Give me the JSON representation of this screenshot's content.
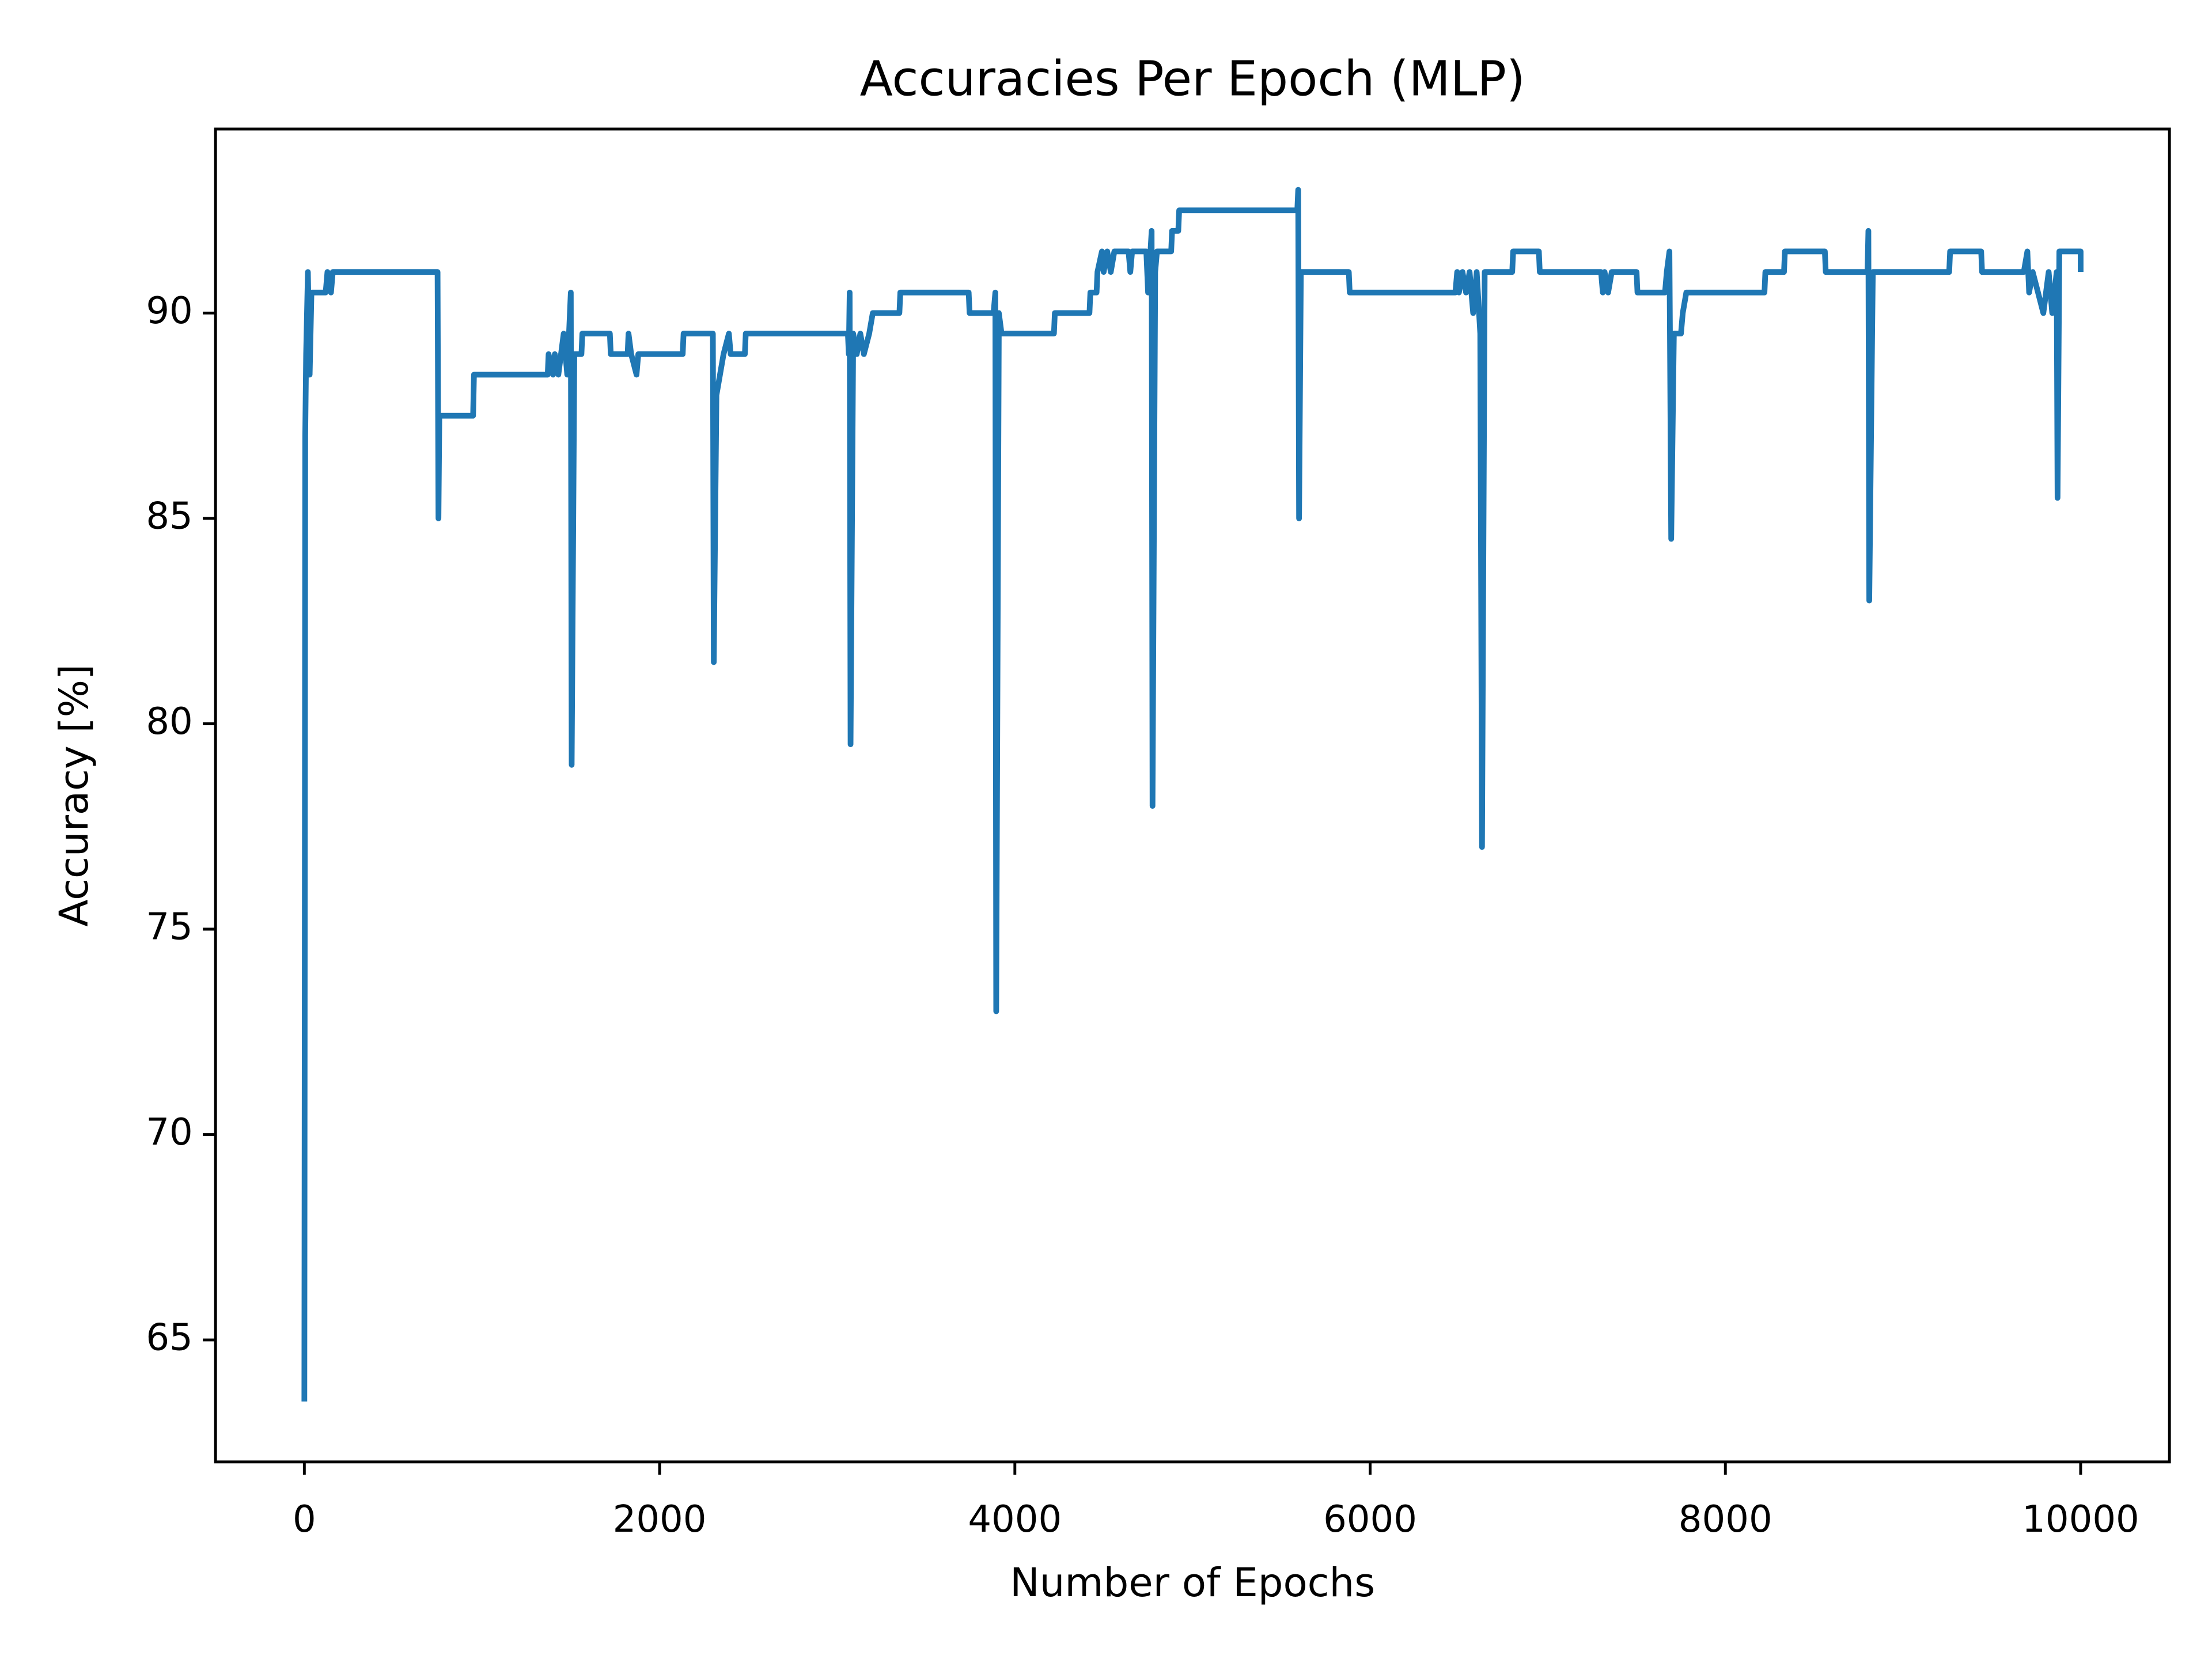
{
  "chart_data": {
    "type": "line",
    "title": "Accuracies Per Epoch (MLP)",
    "x_label": "Number of Epochs",
    "y_label": "Accuracy [%]",
    "xlim": [
      -500,
      10500
    ],
    "ylim": [
      62.03,
      94.48
    ],
    "xticks": [
      0,
      2000,
      4000,
      6000,
      8000,
      10000
    ],
    "yticks": [
      65,
      70,
      75,
      80,
      85,
      90
    ],
    "grid": false,
    "x": [
      0,
      5,
      10,
      20,
      30,
      40,
      120,
      130,
      150,
      160,
      750,
      755,
      760,
      950,
      955,
      1370,
      1375,
      1400,
      1410,
      1430,
      1460,
      1480,
      1500,
      1505,
      1520,
      1560,
      1565,
      1720,
      1725,
      1820,
      1825,
      1840,
      1870,
      1880,
      2130,
      2135,
      2300,
      2305,
      2320,
      2360,
      2390,
      2400,
      2480,
      2485,
      3060,
      3065,
      3070,
      3075,
      3090,
      3110,
      3130,
      3150,
      3180,
      3200,
      3350,
      3355,
      3740,
      3745,
      3880,
      3890,
      3895,
      3910,
      3925,
      4220,
      4225,
      4420,
      4425,
      4460,
      4465,
      4490,
      4500,
      4520,
      4540,
      4560,
      4640,
      4650,
      4660,
      4740,
      4750,
      4770,
      4775,
      4790,
      4800,
      4880,
      4885,
      4920,
      4925,
      5590,
      5595,
      5600,
      5610,
      5880,
      5885,
      6480,
      6490,
      6500,
      6520,
      6540,
      6560,
      6580,
      6600,
      6620,
      6630,
      6645,
      6800,
      6805,
      6950,
      6955,
      7300,
      7310,
      7320,
      7340,
      7360,
      7500,
      7505,
      7660,
      7670,
      7685,
      7695,
      7710,
      7750,
      7760,
      7780,
      8220,
      8225,
      8330,
      8335,
      8560,
      8565,
      8800,
      8805,
      8810,
      8830,
      9260,
      9265,
      9440,
      9445,
      9680,
      9700,
      9710,
      9730,
      9760,
      9790,
      9820,
      9840,
      9865,
      9870,
      9880,
      10000,
      10000
    ],
    "series": [
      {
        "color": "#1f77b4",
        "values": [
          63.5,
          87,
          89,
          91,
          88.5,
          90.5,
          90.5,
          91,
          90.5,
          91,
          91,
          85,
          87.5,
          87.5,
          88.5,
          88.5,
          89,
          88.5,
          89,
          88.5,
          89.5,
          88.5,
          90.5,
          79,
          89,
          89,
          89.5,
          89.5,
          89,
          89,
          89.5,
          89,
          88.5,
          89,
          89,
          89.5,
          89.5,
          81.5,
          88,
          89,
          89.5,
          89,
          89,
          89.5,
          89.5,
          89,
          90.5,
          79.5,
          89.5,
          89,
          89.5,
          89,
          89.5,
          90,
          90,
          90.5,
          90.5,
          90,
          90,
          90.5,
          73,
          90,
          89.5,
          89.5,
          90,
          90,
          90.5,
          90.5,
          91,
          91.5,
          91,
          91.5,
          91,
          91.5,
          91.5,
          91,
          91.5,
          91.5,
          90.5,
          92,
          78,
          91,
          91.5,
          91.5,
          92,
          92,
          92.5,
          92.5,
          93,
          85,
          91,
          91,
          90.5,
          90.5,
          91,
          90.5,
          91,
          90.5,
          91,
          90,
          91,
          89.5,
          77,
          91,
          91,
          91.5,
          91.5,
          91,
          91,
          90.5,
          91,
          90.5,
          91,
          91,
          90.5,
          90.5,
          91,
          91.5,
          84.5,
          89.5,
          89.5,
          90,
          90.5,
          90.5,
          91,
          91,
          91.5,
          91.5,
          91,
          91,
          92,
          83,
          91,
          91,
          91.5,
          91.5,
          91,
          91,
          91.5,
          90.5,
          91,
          90.5,
          90,
          91,
          90,
          91,
          85.5,
          91.5,
          91.5,
          91
        ]
      }
    ]
  }
}
